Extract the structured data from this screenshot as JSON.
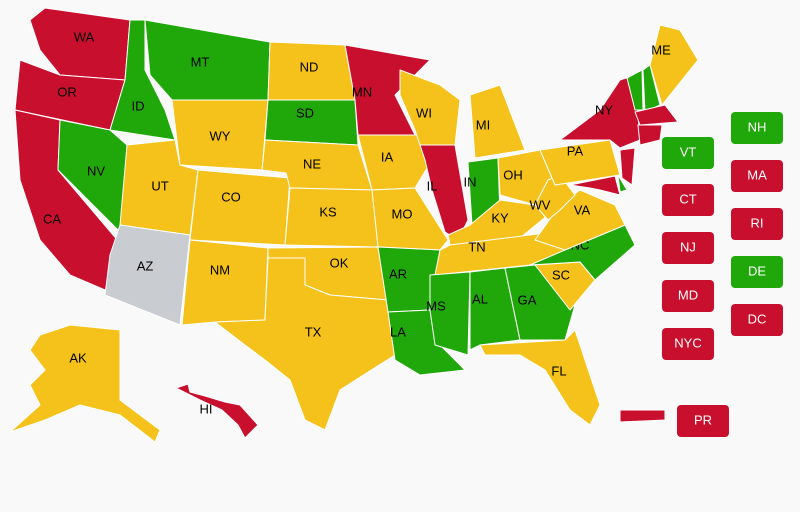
{
  "map": {
    "states": [
      {
        "label": "WA",
        "color": "#c8102e"
      },
      {
        "label": "OR",
        "color": "#c8102e"
      },
      {
        "label": "CA",
        "color": "#c8102e"
      },
      {
        "label": "NV",
        "color": "#20a80a"
      },
      {
        "label": "ID",
        "color": "#20a80a"
      },
      {
        "label": "MT",
        "color": "#20a80a"
      },
      {
        "label": "WY",
        "color": "#f5c21b"
      },
      {
        "label": "UT",
        "color": "#f5c21b"
      },
      {
        "label": "AZ",
        "color": "#c9ccd0"
      },
      {
        "label": "CO",
        "color": "#f5c21b"
      },
      {
        "label": "NM",
        "color": "#f5c21b"
      },
      {
        "label": "ND",
        "color": "#f5c21b"
      },
      {
        "label": "SD",
        "color": "#20a80a"
      },
      {
        "label": "NE",
        "color": "#f5c21b"
      },
      {
        "label": "KS",
        "color": "#f5c21b"
      },
      {
        "label": "OK",
        "color": "#f5c21b"
      },
      {
        "label": "TX",
        "color": "#f5c21b"
      },
      {
        "label": "MN",
        "color": "#c8102e"
      },
      {
        "label": "IA",
        "color": "#f5c21b"
      },
      {
        "label": "MO",
        "color": "#f5c21b"
      },
      {
        "label": "AR",
        "color": "#20a80a"
      },
      {
        "label": "LA",
        "color": "#20a80a"
      },
      {
        "label": "WI",
        "color": "#f5c21b"
      },
      {
        "label": "IL",
        "color": "#c8102e"
      },
      {
        "label": "IN",
        "color": "#20a80a"
      },
      {
        "label": "MI",
        "color": "#f5c21b"
      },
      {
        "label": "OH",
        "color": "#f5c21b"
      },
      {
        "label": "KY",
        "color": "#f5c21b"
      },
      {
        "label": "TN",
        "color": "#f5c21b"
      },
      {
        "label": "MS",
        "color": "#20a80a"
      },
      {
        "label": "AL",
        "color": "#20a80a"
      },
      {
        "label": "GA",
        "color": "#20a80a"
      },
      {
        "label": "FL",
        "color": "#f5c21b"
      },
      {
        "label": "SC",
        "color": "#f5c21b"
      },
      {
        "label": "NC",
        "color": "#20a80a"
      },
      {
        "label": "VA",
        "color": "#f5c21b"
      },
      {
        "label": "WV",
        "color": "#f5c21b"
      },
      {
        "label": "PA",
        "color": "#f5c21b"
      },
      {
        "label": "NY",
        "color": "#c8102e"
      },
      {
        "label": null,
        "color": "#20a80a"
      },
      {
        "label": null,
        "color": "#20a80a"
      },
      {
        "label": "ME",
        "color": "#f5c21b"
      },
      {
        "label": null,
        "color": "#c8102e"
      },
      {
        "label": null,
        "color": "#c8102e"
      },
      {
        "label": null,
        "color": "#c8102e"
      },
      {
        "label": null,
        "color": "#20a80a"
      },
      {
        "label": null,
        "color": "#c8102e"
      },
      {
        "label": "AK",
        "color": "#f5c21b"
      },
      {
        "label": "HI",
        "color": "#c8102e"
      },
      {
        "label": null,
        "color": "#c8102e"
      }
    ],
    "buttons": [
      {
        "label": "VT",
        "color": "#20a80a"
      },
      {
        "label": "NH",
        "color": "#20a80a"
      },
      {
        "label": "CT",
        "color": "#c8102e"
      },
      {
        "label": "MA",
        "color": "#c8102e"
      },
      {
        "label": "NJ",
        "color": "#c8102e"
      },
      {
        "label": "RI",
        "color": "#c8102e"
      },
      {
        "label": "MD",
        "color": "#c8102e"
      },
      {
        "label": "DE",
        "color": "#20a80a"
      },
      {
        "label": "NYC",
        "color": "#c8102e"
      },
      {
        "label": "DC",
        "color": "#c8102e"
      },
      {
        "label": "PR",
        "color": "#c8102e"
      }
    ]
  }
}
